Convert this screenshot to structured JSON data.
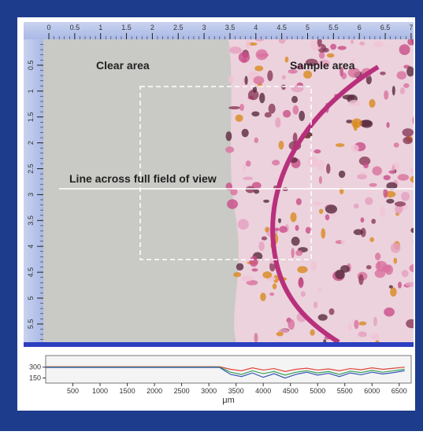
{
  "top_ruler": {
    "ticks": [
      0,
      0.5,
      1,
      1.5,
      2,
      2.5,
      3,
      3.5,
      4,
      4.5,
      5,
      5.5,
      6,
      6.5,
      7
    ]
  },
  "left_ruler": {
    "ticks": [
      0.5,
      1,
      1.5,
      2,
      2.5,
      3,
      3.5,
      4,
      4.5,
      5,
      5.5
    ]
  },
  "annotations": {
    "clear": "Clear area",
    "sample": "Sample area",
    "line": "Line across full field of view"
  },
  "chart_data": {
    "type": "line",
    "xlabel": "μm",
    "x": [
      0,
      200,
      400,
      600,
      800,
      1000,
      1200,
      1400,
      1600,
      1800,
      2000,
      2200,
      2400,
      2600,
      2800,
      3000,
      3200,
      3400,
      3600,
      3800,
      4000,
      4200,
      4400,
      4600,
      4800,
      5000,
      5200,
      5400,
      5600,
      5800,
      6000,
      6200,
      6400,
      6600
    ],
    "series": [
      {
        "color": "#e0453a",
        "values": [
          305,
          305,
          305,
          305,
          305,
          305,
          305,
          305,
          305,
          305,
          305,
          305,
          305,
          305,
          305,
          305,
          305,
          270,
          250,
          290,
          260,
          280,
          240,
          270,
          285,
          260,
          275,
          250,
          280,
          265,
          290,
          270,
          285,
          300
        ]
      },
      {
        "color": "#3aa05a",
        "values": [
          300,
          300,
          300,
          300,
          300,
          300,
          300,
          300,
          300,
          300,
          300,
          300,
          300,
          300,
          300,
          300,
          300,
          230,
          200,
          250,
          210,
          240,
          190,
          230,
          250,
          220,
          240,
          200,
          245,
          225,
          255,
          230,
          250,
          270
        ]
      },
      {
        "color": "#3656b8",
        "values": [
          295,
          295,
          295,
          295,
          295,
          295,
          295,
          295,
          295,
          295,
          295,
          295,
          295,
          295,
          295,
          295,
          295,
          200,
          170,
          220,
          160,
          210,
          150,
          200,
          230,
          190,
          215,
          170,
          220,
          195,
          230,
          205,
          225,
          250
        ]
      }
    ],
    "xlim": [
      0,
      6720
    ],
    "ylim": [
      80,
      460
    ],
    "xticks": [
      500,
      1000,
      1500,
      2000,
      2500,
      3000,
      3500,
      4000,
      4500,
      5000,
      5500,
      6000,
      6500
    ],
    "yticks": [
      150,
      300
    ]
  }
}
